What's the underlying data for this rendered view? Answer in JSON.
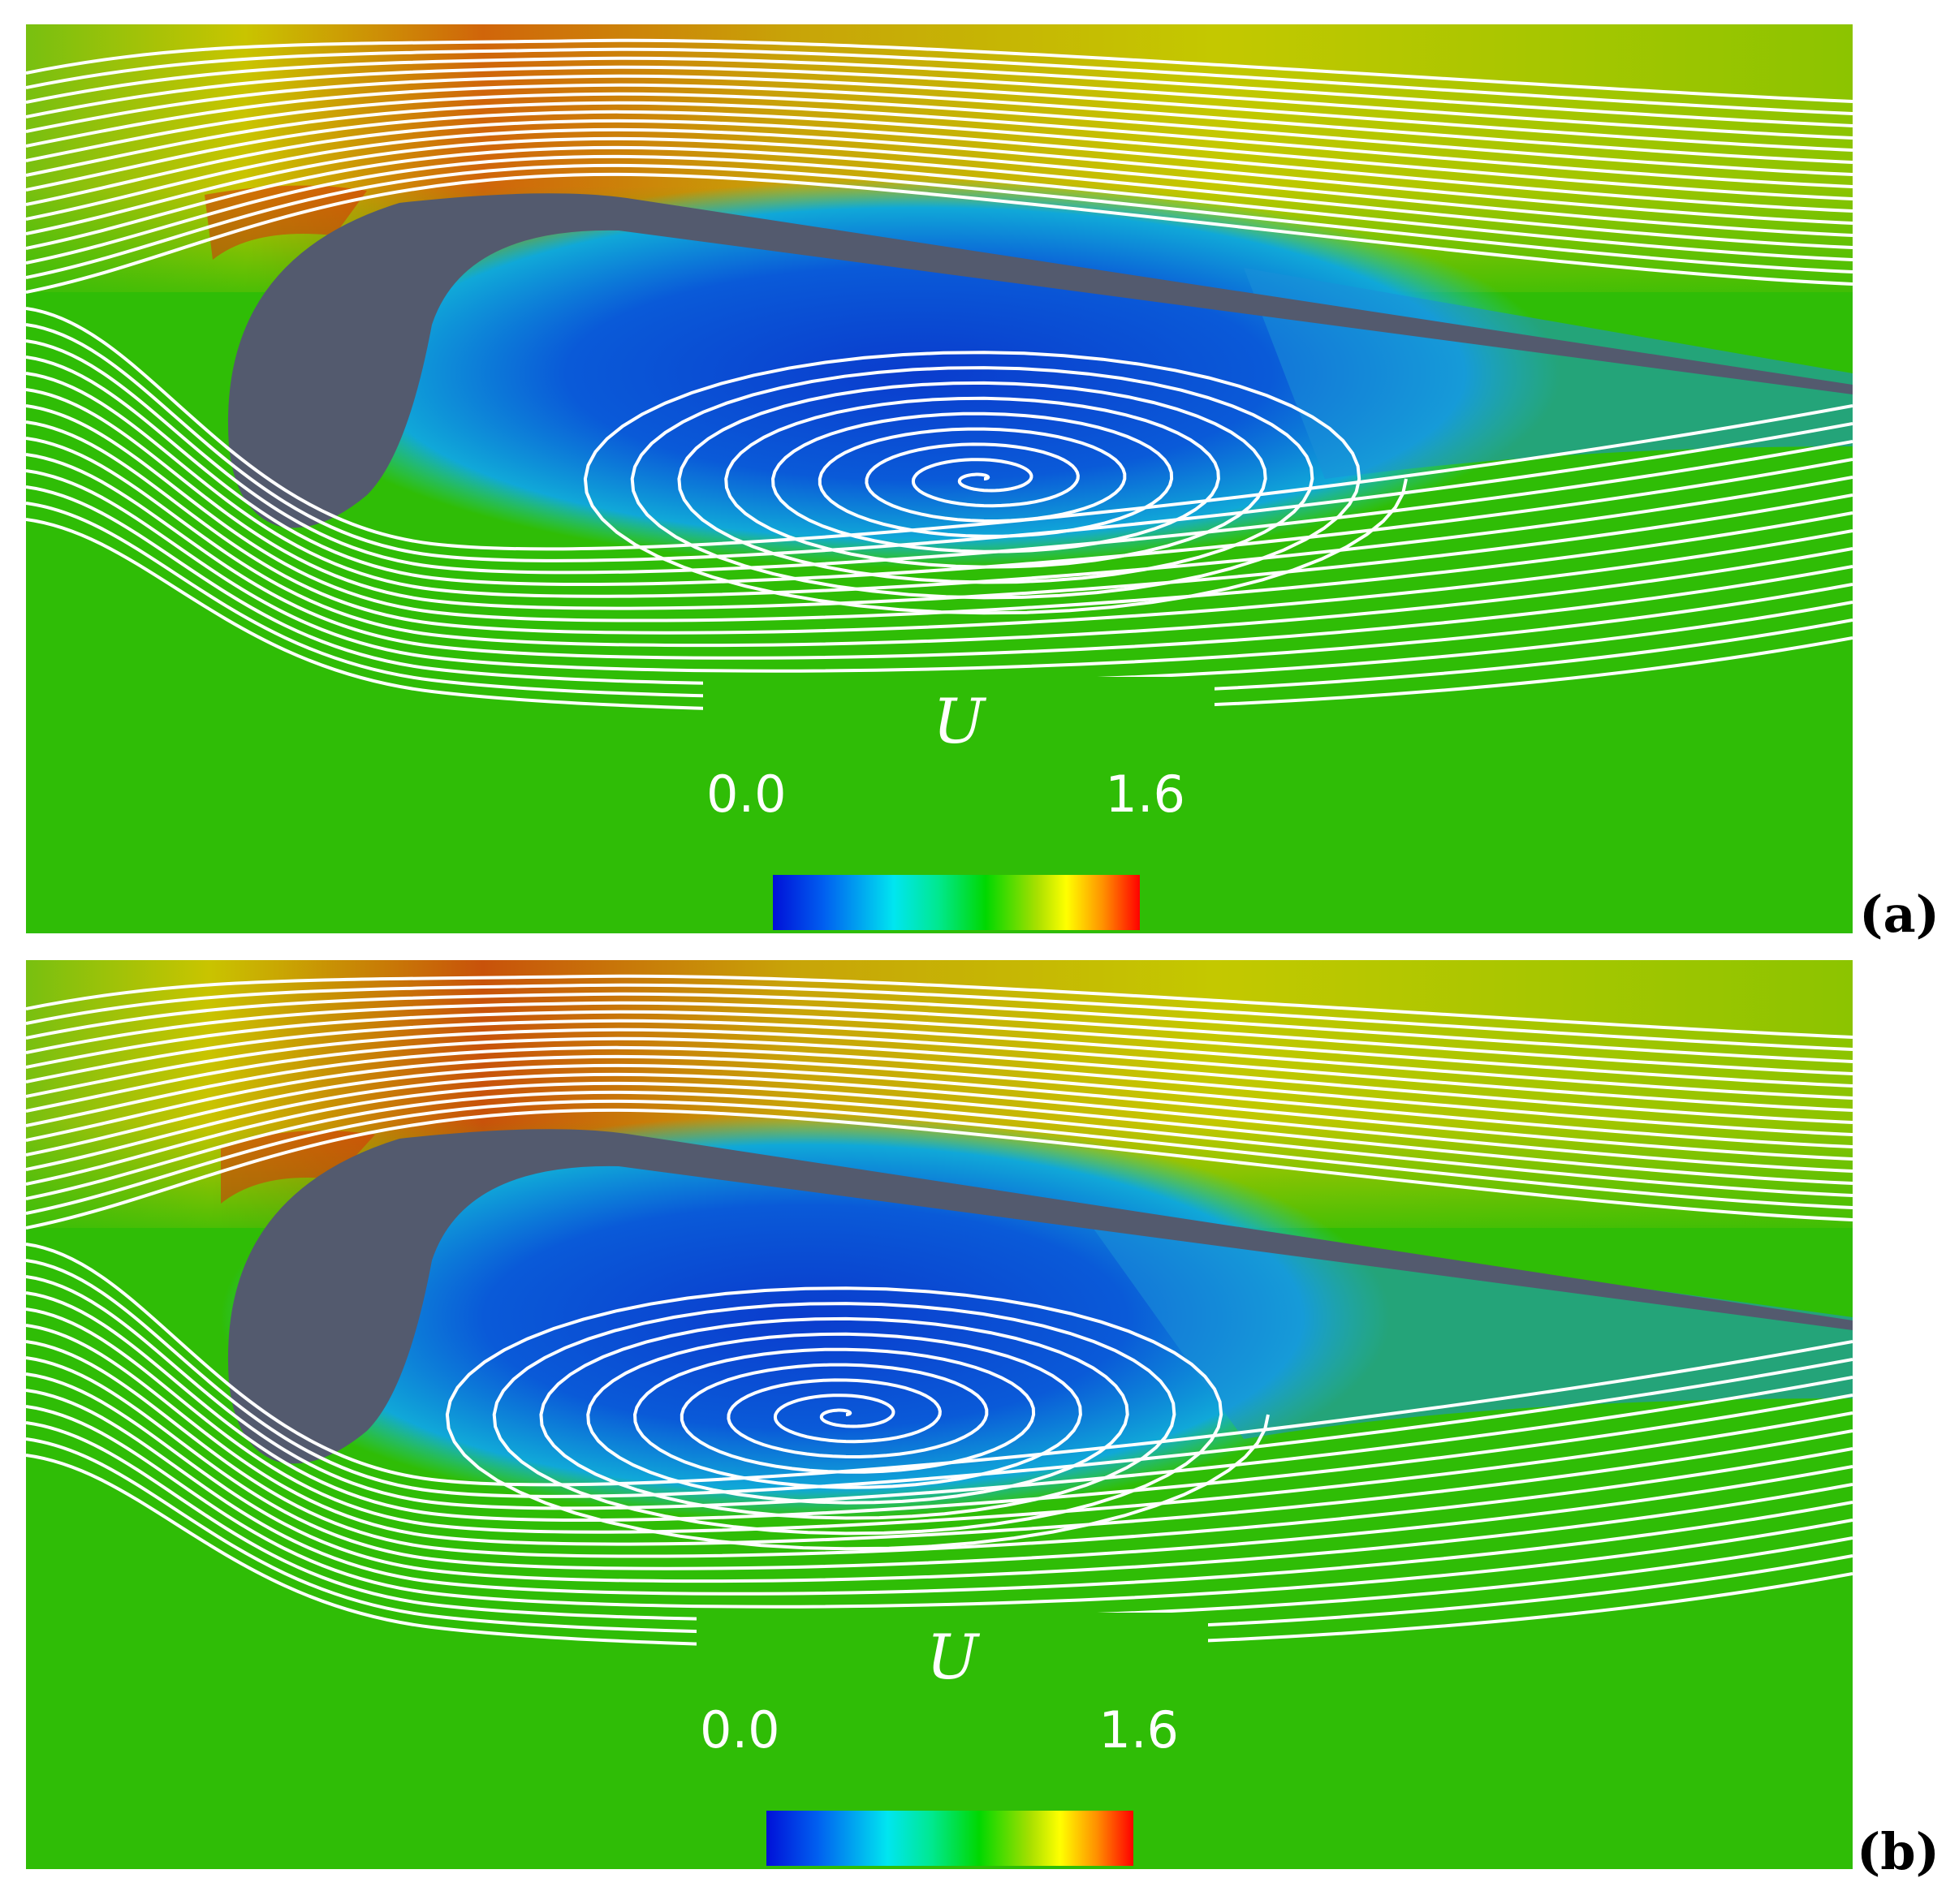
{
  "panels": [
    {
      "id": "a",
      "label": "(a)",
      "legend": {
        "title": "U",
        "min": "0.0",
        "max": "1.6"
      },
      "colormap": [
        "#0010d8",
        "#00e6f0",
        "#00d800",
        "#ffff00",
        "#ff0000"
      ],
      "vortex_position": "center-right"
    },
    {
      "id": "b",
      "label": "(b)",
      "legend": {
        "title": "U",
        "min": "0.0",
        "max": "1.6"
      },
      "colormap": [
        "#0010d8",
        "#00e6f0",
        "#00d800",
        "#ffff00",
        "#ff0000"
      ],
      "vortex_position": "center-left"
    }
  ],
  "colors": {
    "airfoil": "#535a6e",
    "freestream": "#2fbd06",
    "streamline": "#ffffff",
    "high_speed": "#d55a07",
    "recirculation": "#0a4fd4"
  }
}
